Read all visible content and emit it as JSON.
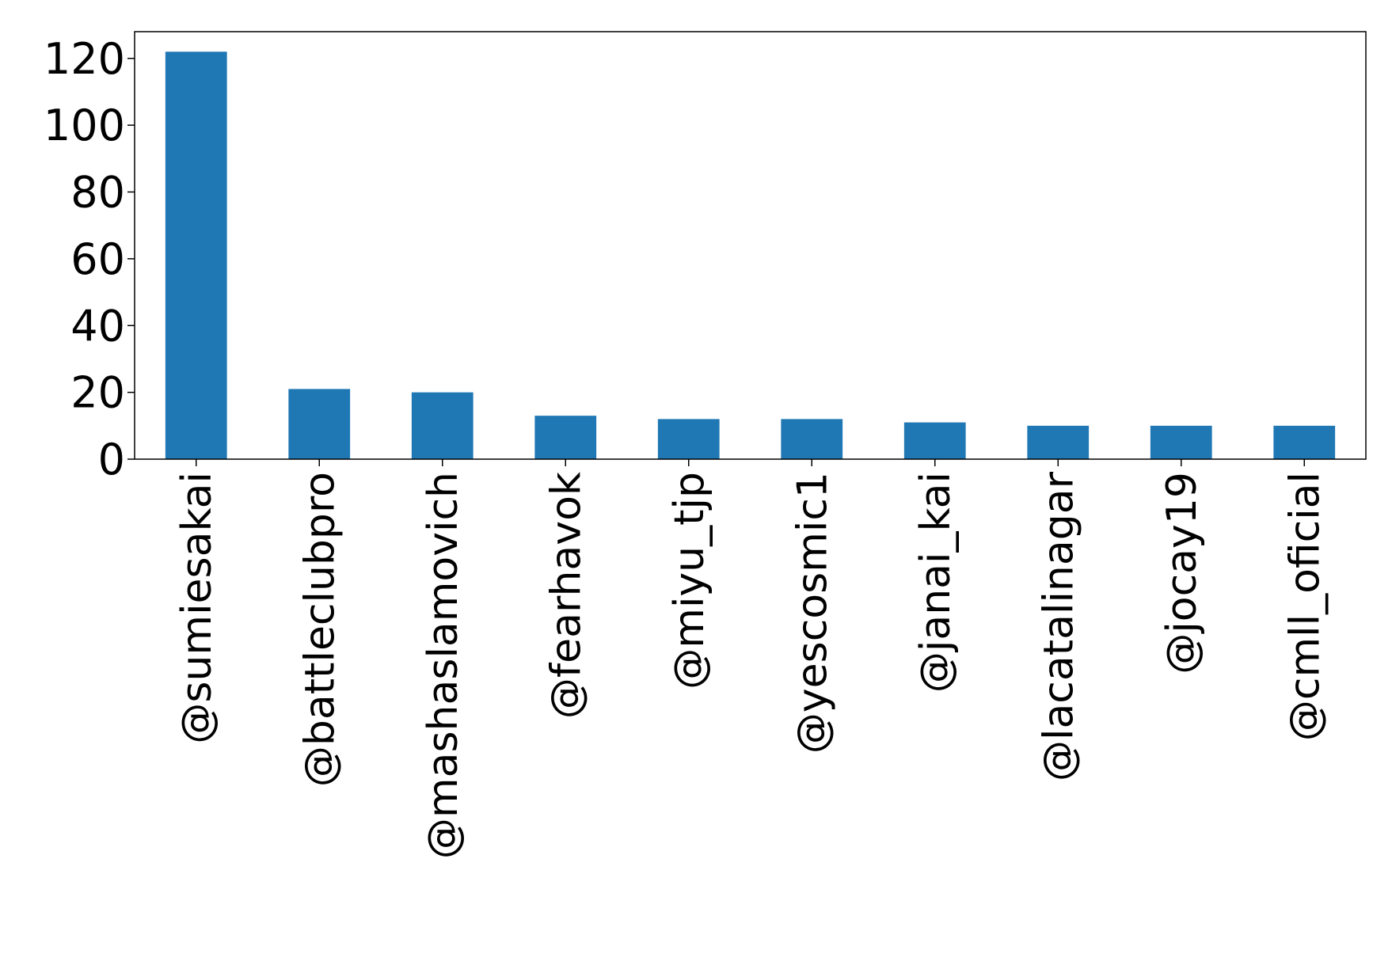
{
  "chart_data": {
    "type": "bar",
    "title": "",
    "xlabel": "",
    "ylabel": "",
    "categories": [
      "@sumiesakai",
      "@battleclubpro",
      "@mashaslamovich",
      "@fearhavok",
      "@miyu_tjp",
      "@yescosmic1",
      "@janai_kai",
      "@lacatalinagar",
      "@jocay19",
      "@cmll_oficial"
    ],
    "values": [
      122,
      21,
      20,
      13,
      12,
      12,
      11,
      10,
      10,
      10
    ],
    "ylim": [
      0,
      128
    ],
    "yticks": [
      0,
      20,
      40,
      60,
      80,
      100,
      120
    ],
    "ytick_labels": [
      "0",
      "20",
      "40",
      "60",
      "80",
      "100",
      "120"
    ],
    "bar_color": "#1f77b4",
    "grid": false,
    "legend": "none"
  }
}
